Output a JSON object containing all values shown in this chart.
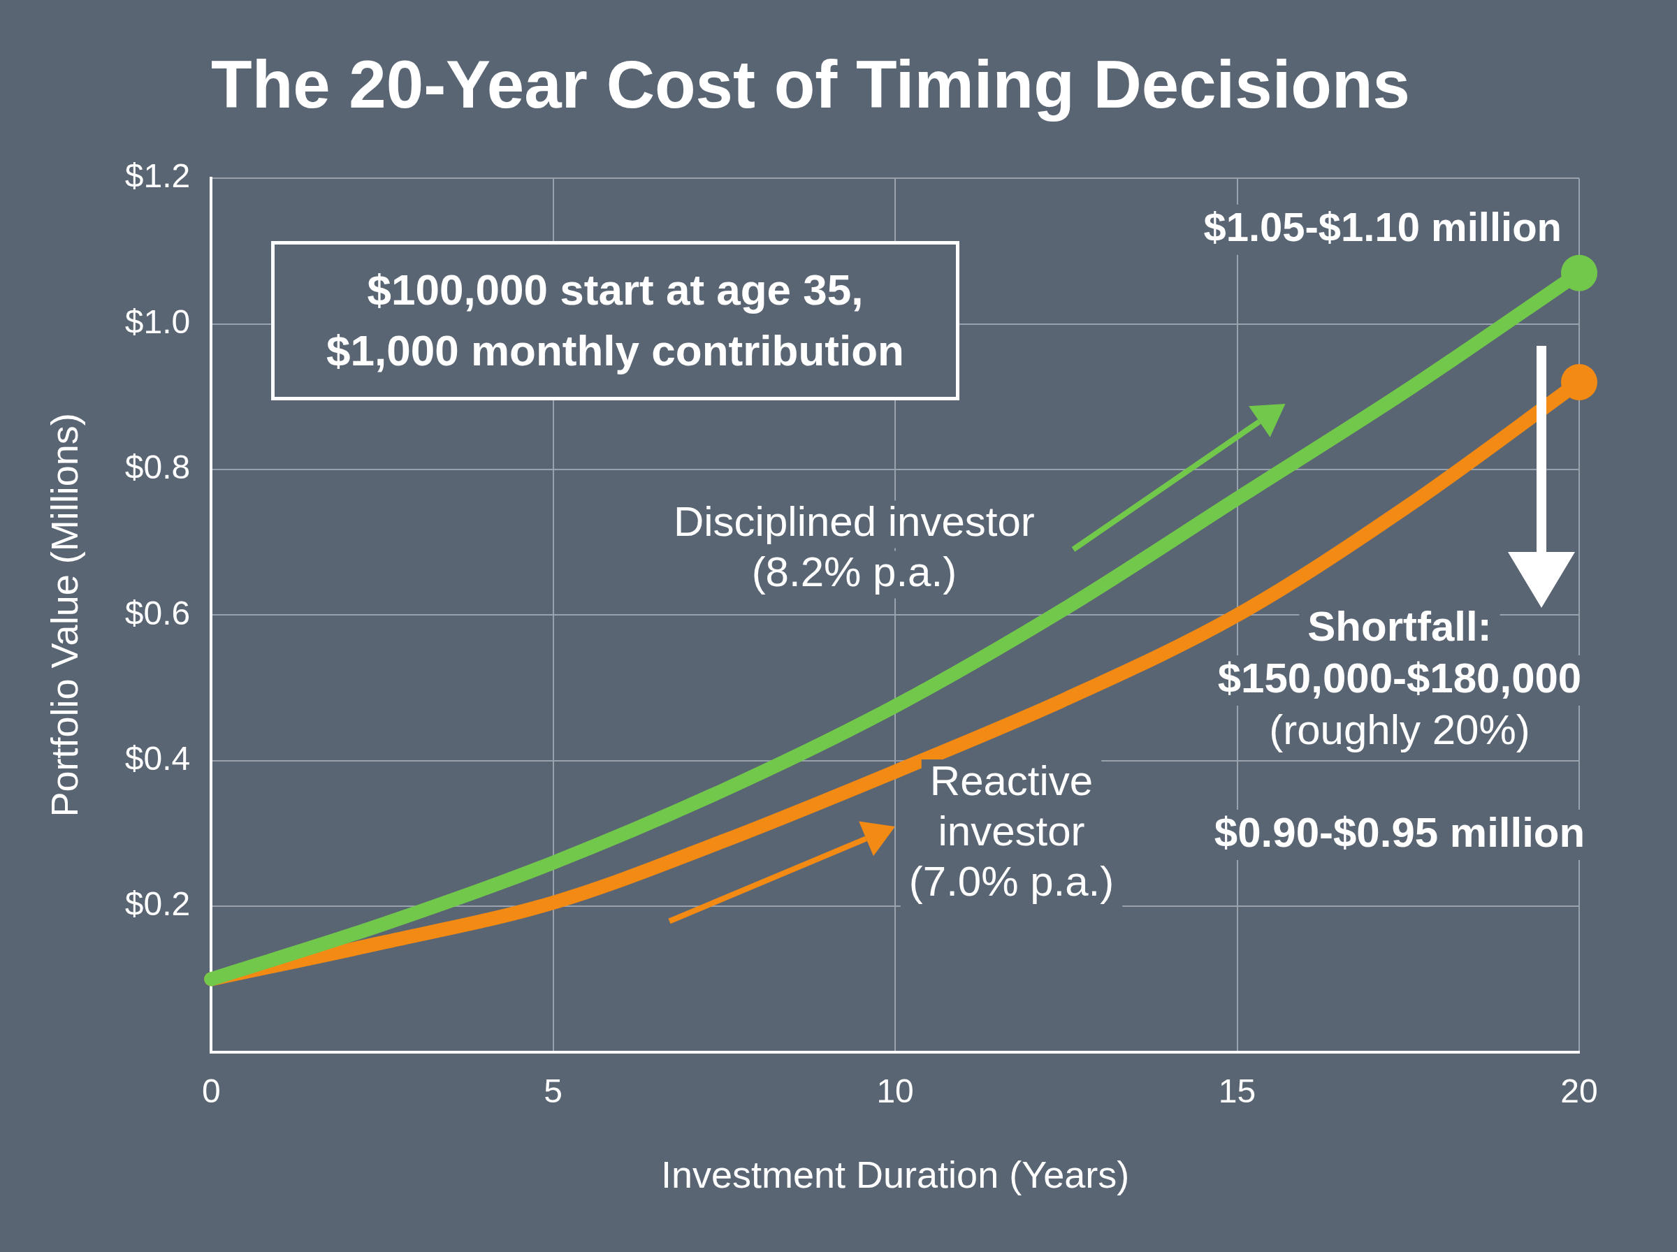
{
  "chart_data": {
    "type": "line",
    "title": "The 20-Year Cost of Timing Decisions",
    "xlabel": "Investment Duration (Years)",
    "ylabel": "Portfolio Value (Millions)",
    "xlim": [
      0,
      20
    ],
    "xticks": [
      0,
      5,
      10,
      15,
      20
    ],
    "ylim": [
      0,
      1.2
    ],
    "yticks": [
      {
        "value": 0.2,
        "label": "$0.2"
      },
      {
        "value": 0.4,
        "label": "$0.4"
      },
      {
        "value": 0.6,
        "label": "$0.6"
      },
      {
        "value": 0.8,
        "label": "$0.8"
      },
      {
        "value": 1.0,
        "label": "$1.0"
      },
      {
        "value": 1.2,
        "label": "$1.2"
      }
    ],
    "x": [
      0,
      2.5,
      5,
      7.5,
      10,
      12.5,
      15,
      17.5,
      20
    ],
    "series": [
      {
        "name": "Disciplined investor (8.2% p.a.)",
        "color": "#72c84a",
        "values": [
          0.1,
          0.175,
          0.26,
          0.36,
          0.475,
          0.61,
          0.76,
          0.91,
          1.07
        ]
      },
      {
        "name": "Reactive investor (7.0% p.a.)",
        "color": "#f28a14",
        "values": [
          0.1,
          0.15,
          0.205,
          0.29,
          0.385,
          0.485,
          0.6,
          0.75,
          0.92
        ]
      },
      {
        "type": "scatter",
        "color": "#72c84a",
        "x": [
          20
        ],
        "values": [
          1.07
        ]
      },
      {
        "type": "scatter",
        "color": "#f28a14",
        "x": [
          20
        ],
        "values": [
          0.92
        ]
      }
    ],
    "annotations": [
      "$100,000 start at age 35, $1,000 monthly contribution",
      "Shortfall: $150,000-$180,000 (roughly 20%)",
      {
        "text": "$1.05-$1.10 million",
        "x": 20,
        "y": 1.07
      },
      "$0.90-$0.95 million"
    ],
    "grid": true,
    "legend": false,
    "line_style": "solid"
  }
}
